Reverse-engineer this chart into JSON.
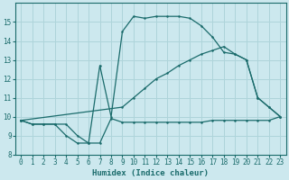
{
  "xlabel": "Humidex (Indice chaleur)",
  "xlim": [
    -0.5,
    23.5
  ],
  "ylim": [
    8,
    16
  ],
  "xticks": [
    0,
    1,
    2,
    3,
    4,
    5,
    6,
    7,
    8,
    9,
    10,
    11,
    12,
    13,
    14,
    15,
    16,
    17,
    18,
    19,
    20,
    21,
    22,
    23
  ],
  "yticks": [
    8,
    9,
    10,
    11,
    12,
    13,
    14,
    15
  ],
  "bg_color": "#cce8ee",
  "grid_color": "#aed4da",
  "line_color": "#1a6b6b",
  "line1_x": [
    0,
    1,
    2,
    3,
    4,
    5,
    6,
    7,
    8,
    9,
    10,
    11,
    12,
    13,
    14,
    15,
    16,
    17,
    18,
    19,
    20,
    21,
    22,
    23
  ],
  "line1_y": [
    9.8,
    9.6,
    9.6,
    9.6,
    9.6,
    9.0,
    8.6,
    8.6,
    9.9,
    9.7,
    9.7,
    9.7,
    9.7,
    9.7,
    9.7,
    9.7,
    9.7,
    9.8,
    9.8,
    9.8,
    9.8,
    9.8,
    9.8,
    10.0
  ],
  "line2_x": [
    0,
    9,
    10,
    11,
    12,
    13,
    14,
    15,
    16,
    17,
    18,
    19,
    20,
    21,
    22,
    23
  ],
  "line2_y": [
    9.8,
    10.5,
    11.0,
    11.5,
    12.0,
    12.3,
    12.7,
    13.0,
    13.3,
    13.5,
    13.7,
    13.3,
    13.0,
    11.0,
    10.5,
    10.0
  ],
  "line3_x": [
    0,
    1,
    2,
    3,
    4,
    5,
    6,
    7,
    8,
    9,
    10,
    11,
    12,
    13,
    14,
    15,
    16,
    17,
    18,
    19,
    20,
    21,
    22,
    23
  ],
  "line3_y": [
    9.8,
    9.6,
    9.6,
    9.6,
    9.0,
    8.6,
    8.6,
    12.7,
    10.0,
    14.5,
    15.3,
    15.2,
    15.3,
    15.3,
    15.3,
    15.2,
    14.8,
    14.2,
    13.4,
    13.3,
    13.0,
    11.0,
    10.5,
    10.0
  ]
}
